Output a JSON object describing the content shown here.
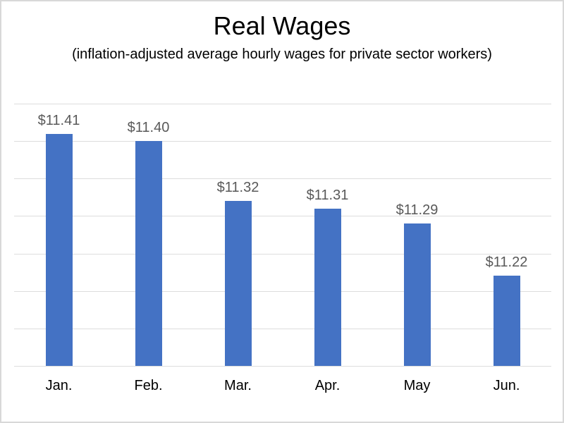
{
  "chart_data": {
    "type": "bar",
    "title": "Real Wages",
    "subtitle": "(inflation-adjusted average hourly wages for private sector workers)",
    "categories": [
      "Jan.",
      "Feb.",
      "Mar.",
      "Apr.",
      "May",
      "Jun."
    ],
    "values": [
      11.41,
      11.4,
      11.32,
      11.31,
      11.29,
      11.22
    ],
    "data_labels": [
      "$11.41",
      "$11.40",
      "$11.32",
      "$11.31",
      "$11.29",
      "$11.22"
    ],
    "xlabel": "",
    "ylabel": "",
    "ylim": [
      11.1,
      11.45
    ],
    "grid_step": 0.05,
    "grid": "on",
    "legend": "none",
    "y_axis_tick_labels": "none",
    "bar_color": "#4472C4",
    "data_label_color": "#595959",
    "gridline_color": "#dddddd",
    "title_color": "#000000",
    "category_label_color": "#000000"
  }
}
